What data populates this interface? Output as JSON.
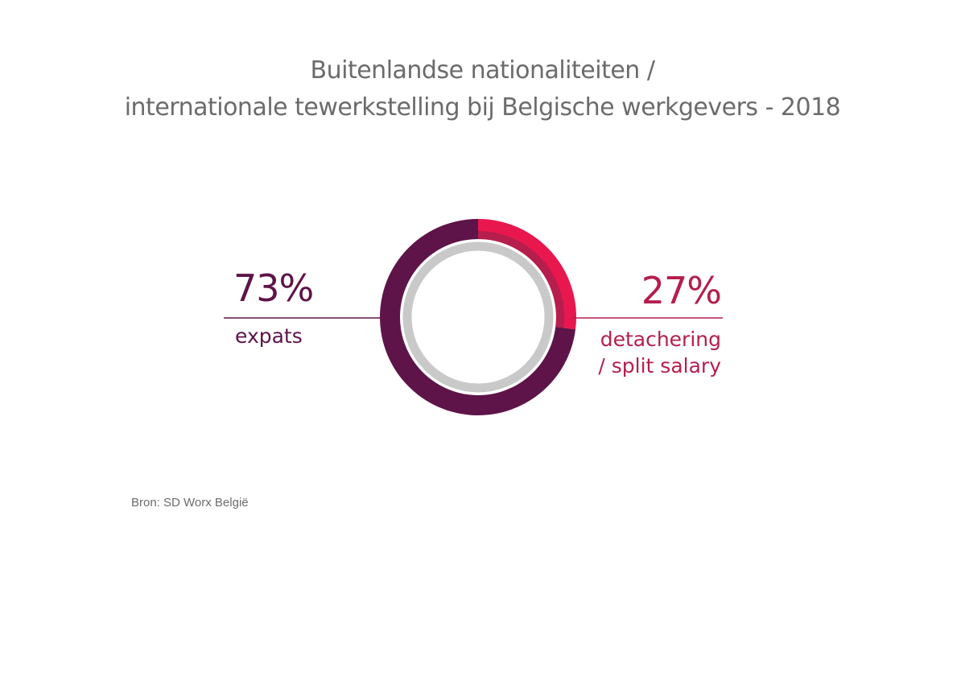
{
  "chart_data": {
    "type": "pie",
    "title": "Buitenlandse nationaliteiten /",
    "subtitle": "internationale tewerkstelling bij Belgische werkgevers - 2018",
    "slices": [
      {
        "label": "expats",
        "value": 73,
        "value_label": "73%",
        "color": "#5e1448"
      },
      {
        "label": "detachering / split salary",
        "label_line1": "detachering",
        "label_line2": "/ split salary",
        "value": 27,
        "value_label": "27%",
        "color": "#e8174e"
      }
    ],
    "colors": {
      "inner_ring": "#c9c9c9",
      "right_label": "#b51e4d",
      "right_inner_band": "#b51e4d"
    }
  },
  "source": "Bron: SD Worx België"
}
